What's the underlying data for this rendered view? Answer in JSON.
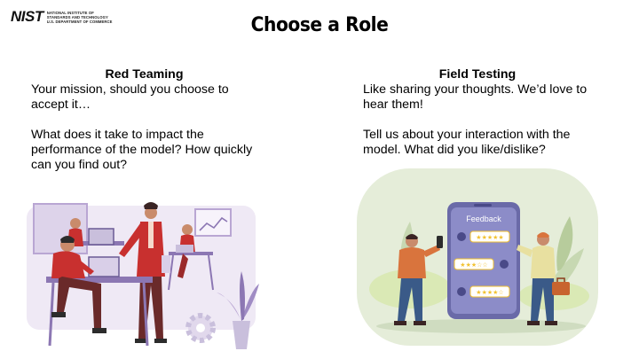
{
  "logo": {
    "mark": "NIST",
    "lines": [
      "NATIONAL INSTITUTE OF",
      "STANDARDS AND TECHNOLOGY",
      "U.S. DEPARTMENT OF COMMERCE"
    ]
  },
  "title": "Choose a Role",
  "left": {
    "heading": "Red Teaming",
    "para1_line1": "Your mission, should you choose to",
    "para1_line2": "accept it…",
    "para2_line1": "What does it take to impact the",
    "para2_line2": "performance of the model? How quickly",
    "para2_line3": "can you find out?"
  },
  "right": {
    "heading": "Field Testing",
    "para1_line1": "Like sharing your thoughts. We’d love to",
    "para1_line2": "hear them!",
    "para2_line1": "Tell us about your interaction with the",
    "para2_line2": "model. What did you like/dislike?",
    "phone_label": "Feedback"
  },
  "colors": {
    "purple_light": "#e8e0f0",
    "purple_mid": "#b9a6d3",
    "purple_dark": "#6b5b95",
    "red": "#c8302f",
    "green_bg": "#e3ecd8",
    "phone": "#6a6aa8",
    "star": "#f2c230"
  }
}
